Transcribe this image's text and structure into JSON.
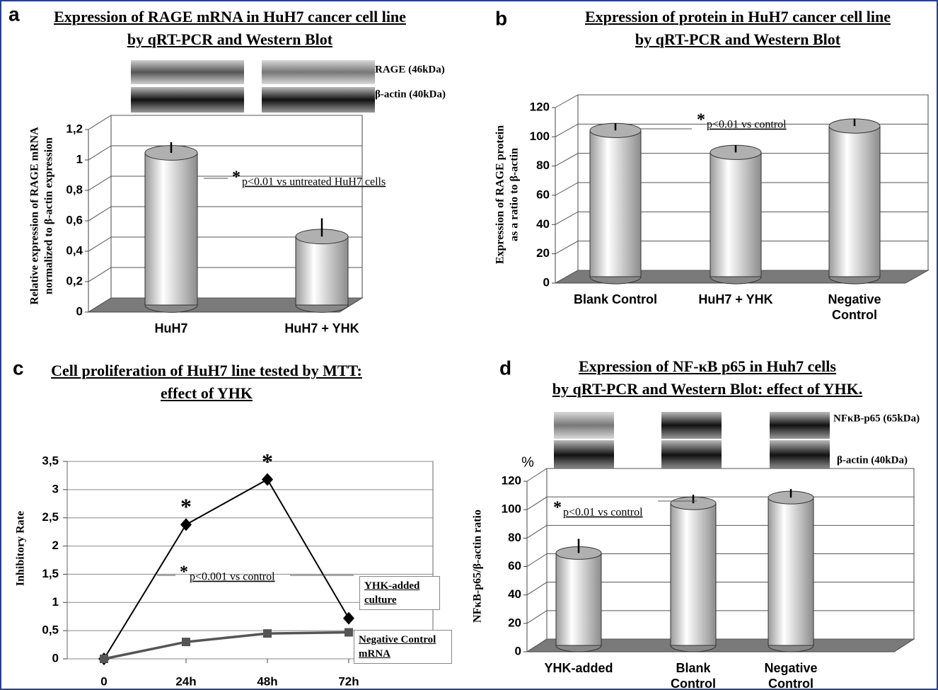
{
  "chart_data": [
    {
      "type": "bar3d",
      "panel": "a",
      "title": [
        "Expression of RAGE mRNA in HuH7 cancer cell line",
        "by qRT-PCR and Western Blot"
      ],
      "ylabel": [
        "Relative expression of RAGE mRNA",
        "normalized to β-actin expression"
      ],
      "blot_labels": [
        "RAGE (46kDa)",
        "β-actin (40kDa)"
      ],
      "categories": [
        "HuH7",
        "HuH7 + YHK"
      ],
      "values": [
        1.0,
        0.45
      ],
      "errors": [
        0.07,
        0.12
      ],
      "ylim": [
        0,
        1.2
      ],
      "yticks": [
        0,
        {
          "value": 0.2,
          "label": "0,2"
        },
        {
          "value": 0.4,
          "label": "0,4"
        },
        {
          "value": 0.6,
          "label": "0,6"
        },
        {
          "value": 0.8,
          "label": "0,8"
        },
        1,
        {
          "value": 1.2,
          "label": "1,2"
        }
      ],
      "annotation": {
        "star": "*",
        "text": "p<0.01 vs untreated HuH7 cells"
      }
    },
    {
      "type": "bar3d",
      "panel": "b",
      "title": [
        "Expression of protein in HuH7 cancer cell line",
        "by qRT-PCR and Western Blot"
      ],
      "ylabel": [
        "Expression of RAGE protein",
        "as a ratio to β-actin"
      ],
      "categories": [
        "Blank Control",
        "HuH7 + YHK",
        "Negative Control"
      ],
      "values": [
        100,
        85,
        103
      ],
      "errors": [
        5,
        5,
        5
      ],
      "ylim": [
        0,
        120
      ],
      "yticks": [
        0,
        20,
        40,
        60,
        80,
        100,
        120
      ],
      "annotation": {
        "star": "*",
        "text": "p<0.01 vs control"
      }
    },
    {
      "type": "line",
      "panel": "c",
      "title": [
        "Cell proliferation of HuH7 line tested by MTT:",
        "effect of YHK"
      ],
      "ylabel": [
        "Inhibitory Rate"
      ],
      "categories": [
        "0",
        "24h",
        "48h",
        "72h"
      ],
      "series": [
        {
          "name": "YHK-added culture",
          "color": "#000000",
          "marker": "diamond",
          "values": [
            0,
            2.38,
            3.18,
            0.72
          ],
          "significance": [
            null,
            "*",
            "*",
            null
          ]
        },
        {
          "name": "Negative Control mRNA",
          "color": "#555555",
          "marker": "square",
          "values": [
            0,
            0.3,
            0.45,
            0.47
          ]
        }
      ],
      "ylim": [
        0,
        3.5
      ],
      "yticks": [
        0,
        {
          "value": 0.5,
          "label": "0,5"
        },
        1,
        {
          "value": 1.5,
          "label": "1,5"
        },
        2,
        {
          "value": 2.5,
          "label": "2,5"
        },
        3,
        {
          "value": 3.5,
          "label": "3,5"
        }
      ],
      "grid": true,
      "annotation": {
        "star": "*",
        "text": "p<0.001 vs control"
      }
    },
    {
      "type": "bar3d",
      "panel": "d",
      "title": [
        "Expression of NF-κB p65 in Huh7 cells",
        "by qRT-PCR and Western Blot: effect of YHK."
      ],
      "ylabel": [
        "NFκB-p65/β-actin ratio"
      ],
      "unit": "%",
      "blot_labels": [
        "NFκB-p65 (65kDa)",
        "β-actin (40kDa)"
      ],
      "categories": [
        "YHK-added",
        "Blank Control",
        "Negative Control"
      ],
      "values": [
        65,
        100,
        104
      ],
      "errors": [
        10,
        6,
        6
      ],
      "ylim": [
        0,
        120
      ],
      "yticks": [
        0,
        20,
        40,
        60,
        80,
        100,
        120
      ],
      "annotation": {
        "star": "*",
        "text": "p<0.01 vs control"
      }
    }
  ]
}
